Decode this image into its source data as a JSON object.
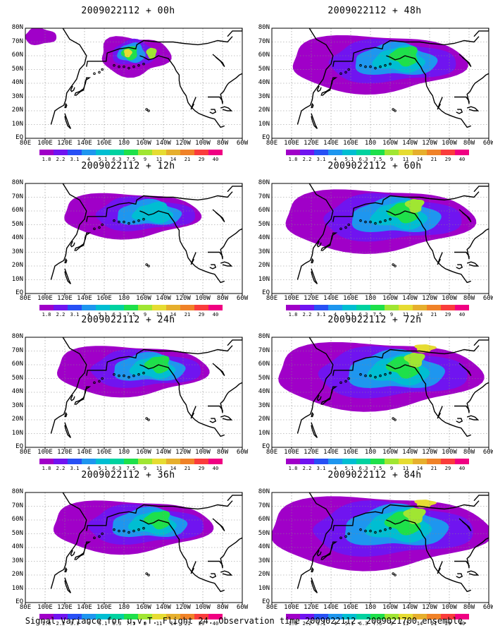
{
  "panels": [
    {
      "title": "2009022112 + 00h",
      "forecast_hour": 0,
      "intensity": 0.15,
      "targets": []
    },
    {
      "title": "2009022112 + 48h",
      "forecast_hour": 48,
      "intensity": 0.55,
      "targets": []
    },
    {
      "title": "2009022112 + 12h",
      "forecast_hour": 12,
      "intensity": 0.3,
      "targets": []
    },
    {
      "title": "2009022112 + 60h",
      "forecast_hour": 60,
      "intensity": 0.65,
      "targets": []
    },
    {
      "title": "2009022112 + 24h",
      "forecast_hour": 24,
      "intensity": 0.4,
      "targets": []
    },
    {
      "title": "2009022112 + 72h",
      "forecast_hour": 72,
      "intensity": 0.75,
      "targets": []
    },
    {
      "title": "2009022112 + 36h",
      "forecast_hour": 36,
      "intensity": 0.45,
      "targets": []
    },
    {
      "title": "2009022112 + 84h",
      "forecast_hour": 84,
      "intensity": 0.85,
      "targets": []
    }
  ],
  "lat_labels": [
    "80N",
    "70N",
    "60N",
    "50N",
    "40N",
    "30N",
    "20N",
    "10N",
    "EQ"
  ],
  "lon_labels": [
    "80E",
    "100E",
    "120E",
    "140E",
    "160E",
    "180",
    "160W",
    "140W",
    "120W",
    "100W",
    "80W",
    "60W"
  ],
  "colorbar": {
    "labels": [
      "1.8",
      "2.2",
      "3.1",
      "4",
      "5.1",
      "6.3",
      "7.5",
      "9",
      "11",
      "14",
      "21",
      "29",
      "40"
    ],
    "colors": [
      "#a000c8",
      "#7014f0",
      "#2850f5",
      "#1e96ef",
      "#00bed2",
      "#00d2a0",
      "#1ee04a",
      "#a0e632",
      "#e6dc32",
      "#e6af2d",
      "#f08228",
      "#fa3c3c",
      "#f00082"
    ]
  },
  "caption": "Signal Variance for u,v,T. Flight 24. Observation time 2009022112. 2009021700 ensemble."
}
